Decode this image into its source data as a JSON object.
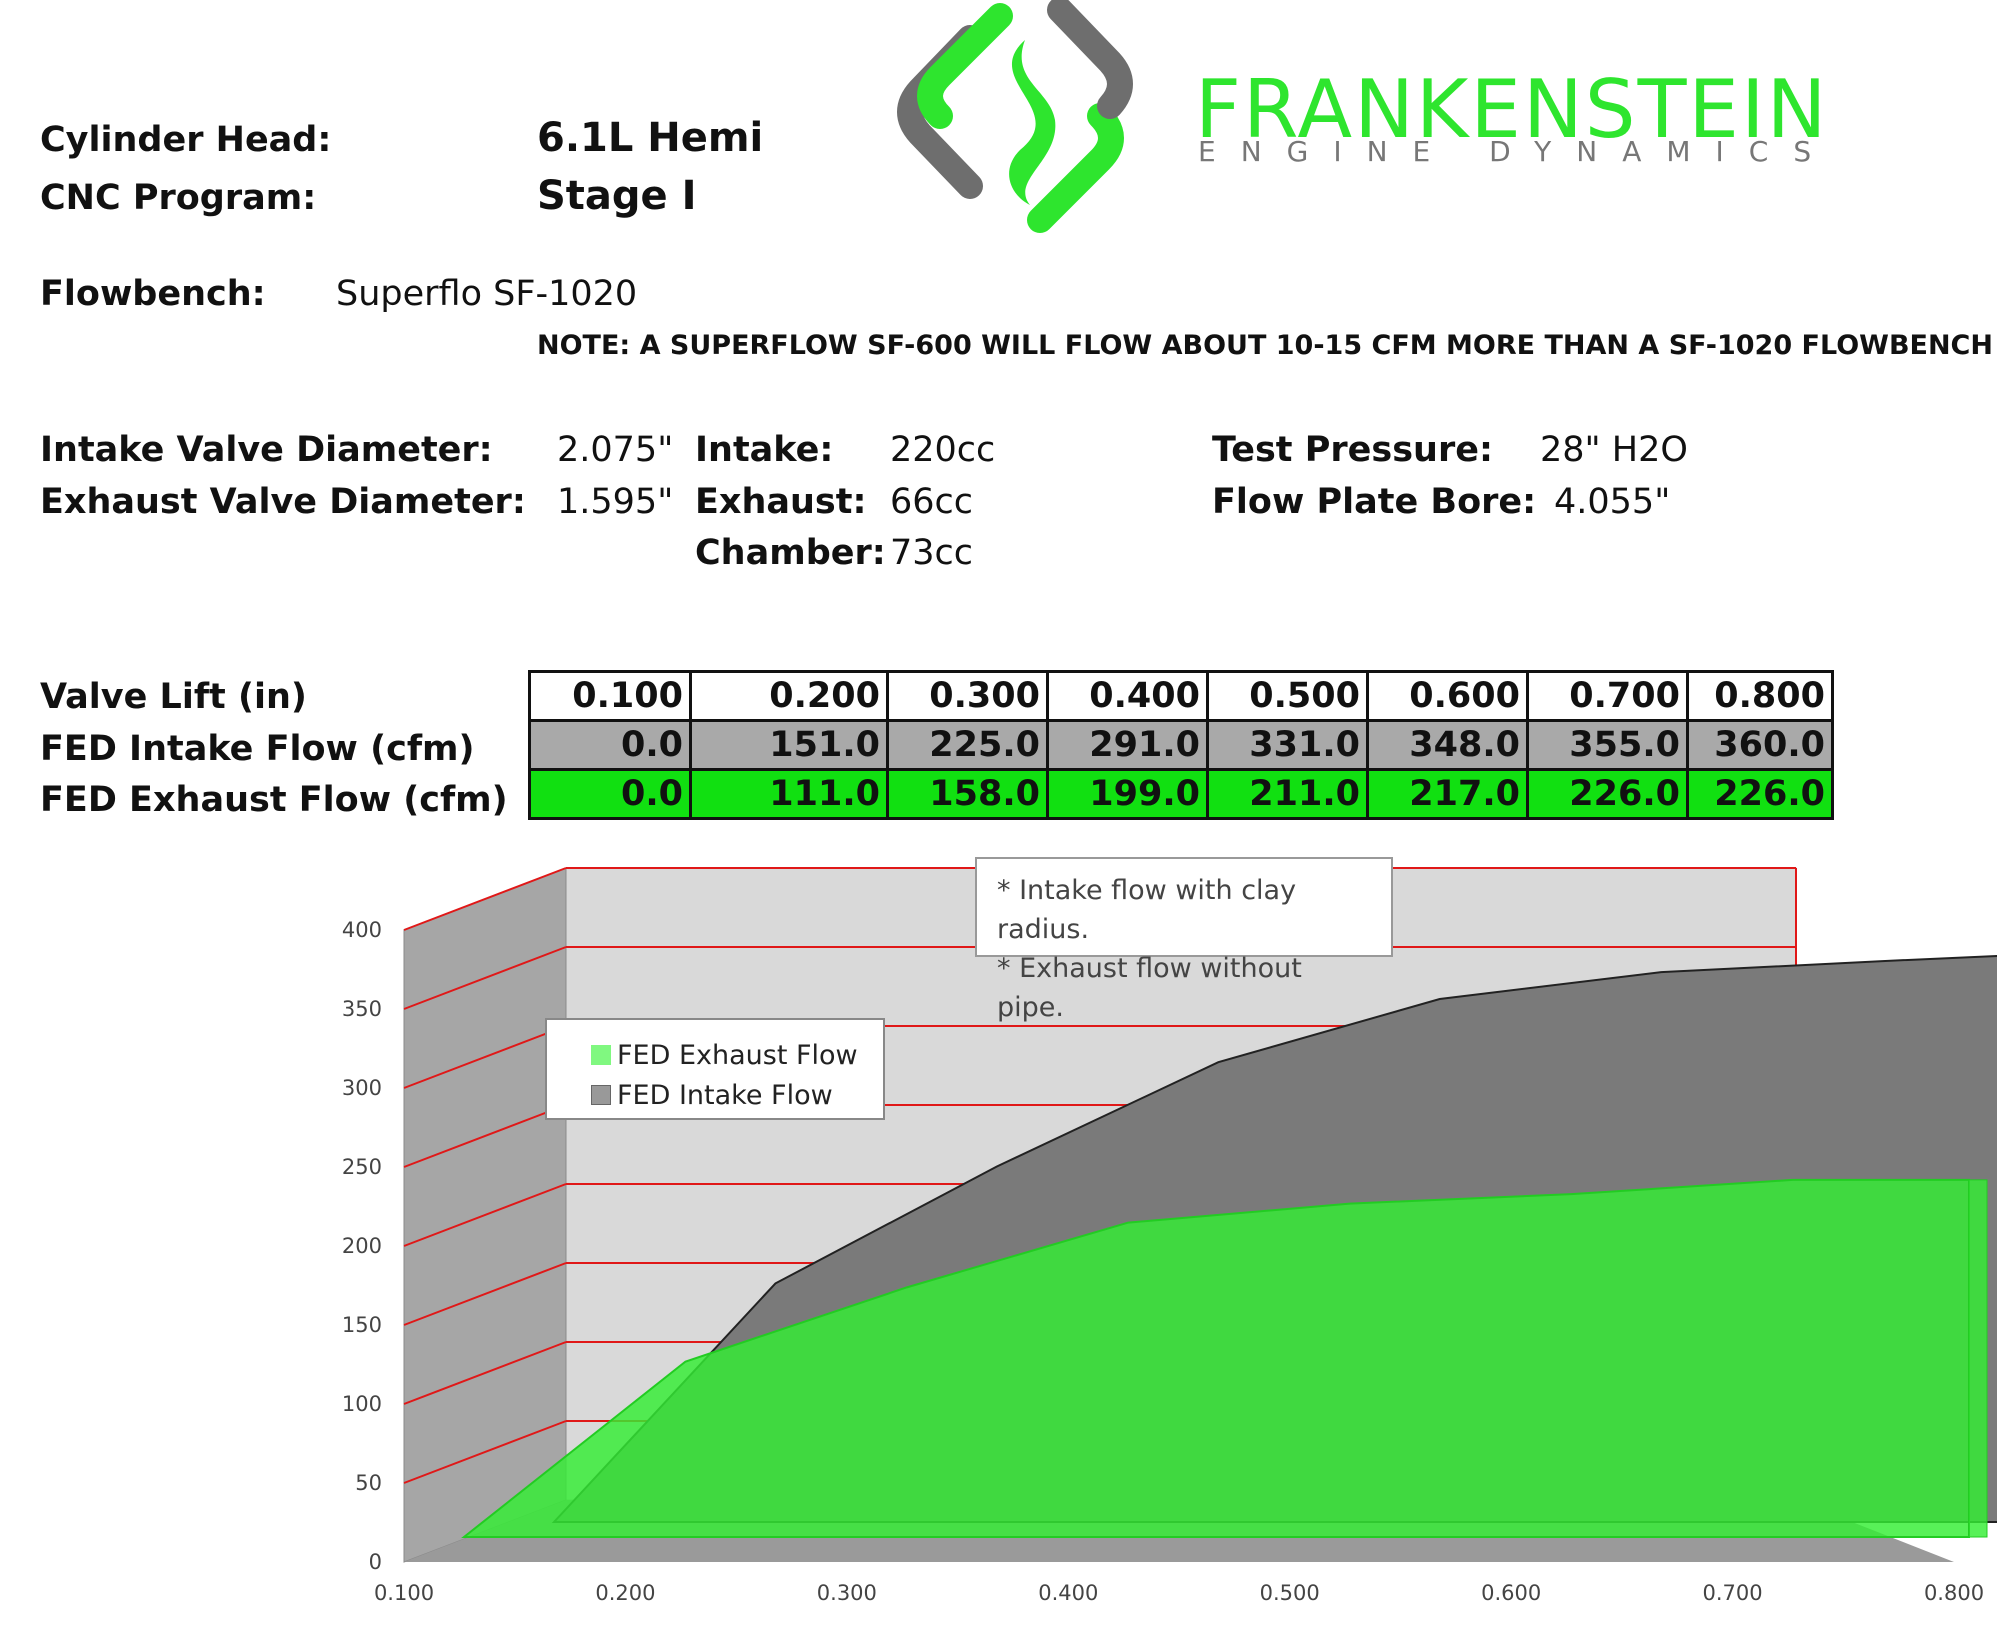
{
  "header": {
    "cylinder_head_label": "Cylinder Head:",
    "cylinder_head_value": "6.1L Hemi",
    "cnc_label": "CNC Program:",
    "cnc_value": "Stage I",
    "flowbench_label": "Flowbench:",
    "flowbench_value": "Superflo SF-1020",
    "note": "NOTE: A SUPERFLOW SF-600 WILL FLOW ABOUT 10-15 CFM MORE THAN A SF-1020 FLOWBENCH"
  },
  "logo": {
    "word": "FRANKENSTEIN",
    "sub": "ENGINE DYNAMICS",
    "colors": {
      "green": "#2ee52e",
      "gray": "#6e6e6e"
    }
  },
  "specs": {
    "intake_valve_label": "Intake Valve Diameter:",
    "intake_valve_value": "2.075\"",
    "exhaust_valve_label": "Exhaust Valve Diameter:",
    "exhaust_valve_value": "1.595\"",
    "intake_label": "Intake:",
    "intake_value": "220cc",
    "exhaust_label": "Exhaust:",
    "exhaust_value": "66cc",
    "chamber_label": "Chamber:",
    "chamber_value": "73cc",
    "test_pressure_label": "Test Pressure:",
    "test_pressure_value": "28\" H2O",
    "flow_plate_label": "Flow Plate Bore:",
    "flow_plate_value": "4.055\""
  },
  "table": {
    "row_labels": [
      "Valve Lift (in)",
      "FED Intake Flow (cfm)",
      "FED Exhaust Flow (cfm)"
    ],
    "lift": [
      "0.100",
      "0.200",
      "0.300",
      "0.400",
      "0.500",
      "0.600",
      "0.700",
      "0.800"
    ],
    "intake": [
      "0.0",
      "151.0",
      "225.0",
      "291.0",
      "331.0",
      "348.0",
      "355.0",
      "360.0"
    ],
    "exhaust": [
      "0.0",
      "111.0",
      "158.0",
      "199.0",
      "211.0",
      "217.0",
      "226.0",
      "226.0"
    ]
  },
  "annotation": {
    "line1": "* Intake flow with clay radius.",
    "line2": "* Exhaust flow without pipe."
  },
  "chart_data": {
    "type": "area",
    "title": "",
    "xlabel": "",
    "ylabel": "",
    "x": [
      0.1,
      0.2,
      0.3,
      0.4,
      0.5,
      0.6,
      0.7,
      0.8
    ],
    "x_tick_labels": [
      "0.100",
      "0.200",
      "0.300",
      "0.400",
      "0.500",
      "0.600",
      "0.700",
      "0.800"
    ],
    "y_tick_labels": [
      "0",
      "50",
      "100",
      "150",
      "200",
      "250",
      "300",
      "350",
      "400"
    ],
    "ylim": [
      0,
      400
    ],
    "grid": true,
    "legend_position": "top-left",
    "series": [
      {
        "name": "FED Exhaust Flow",
        "values": [
          0,
          111,
          158,
          199,
          211,
          217,
          226,
          226
        ],
        "color": "#33ee33"
      },
      {
        "name": "FED Intake Flow",
        "values": [
          0,
          151,
          225,
          291,
          331,
          348,
          355,
          360
        ],
        "color": "#7a7a7a"
      }
    ]
  }
}
